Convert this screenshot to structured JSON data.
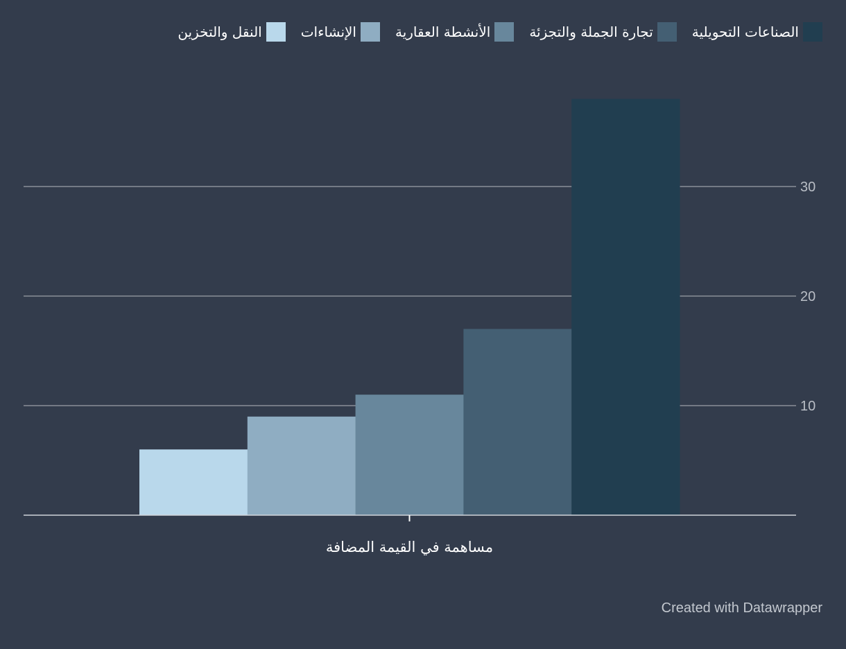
{
  "credit": "Created with Datawrapper",
  "colors": {
    "background": "#333c4c",
    "grid": "#8a8f98",
    "axis": "#d0d4da",
    "tick_label": "#b9bec6",
    "category_label": "#ffffff"
  },
  "chart_data": {
    "type": "bar",
    "categories": [
      "مساهمة في القيمة المضافة"
    ],
    "series": [
      {
        "name": "الصناعات التحويلية",
        "values": [
          38
        ],
        "color": "#213e50"
      },
      {
        "name": "تجارة الجملة والتجزئة",
        "values": [
          17
        ],
        "color": "#445f73"
      },
      {
        "name": "الأنشطة العقارية",
        "values": [
          11
        ],
        "color": "#68879c"
      },
      {
        "name": "الإنشاءات",
        "values": [
          9
        ],
        "color": "#8fadc2"
      },
      {
        "name": "النقل والتخزين",
        "values": [
          6
        ],
        "color": "#b9d8eb"
      }
    ],
    "bar_order": [
      "النقل والتخزين",
      "الإنشاءات",
      "الأنشطة العقارية",
      "تجارة الجملة والتجزئة",
      "الصناعات التحويلية"
    ],
    "yticks": [
      10,
      20,
      30
    ],
    "ylim": [
      0,
      40
    ],
    "y_axis_position": "right",
    "grid": true,
    "legend_position": "top",
    "title": "",
    "xlabel": "",
    "ylabel": ""
  }
}
